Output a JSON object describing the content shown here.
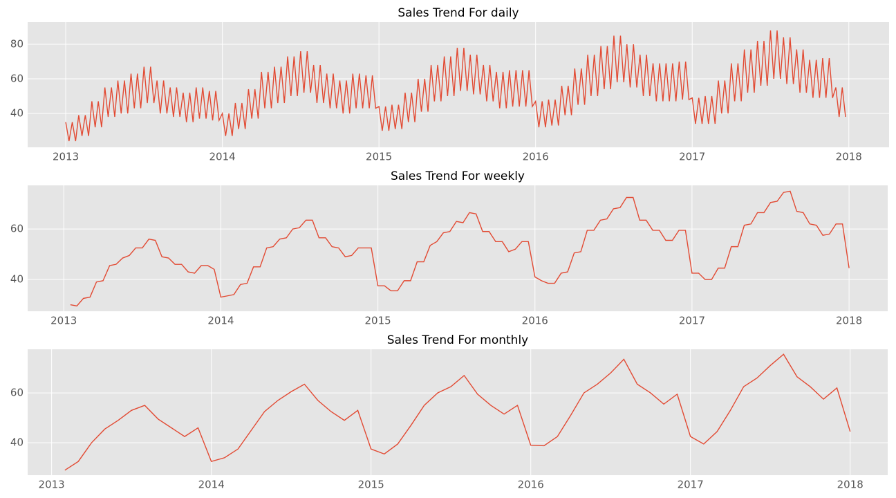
{
  "chart_data": [
    {
      "type": "line",
      "title": "Sales Trend For daily",
      "color": "#e24a33",
      "xlim": [
        2012.757,
        2018.257
      ],
      "ylim": [
        20.4,
        92.8
      ],
      "xticks": [
        2013,
        2014,
        2015,
        2016,
        2017,
        2018
      ],
      "yticks": [
        40,
        60,
        80
      ],
      "grid": true,
      "x": [
        2013,
        2013.021,
        2013.042,
        2013.063,
        2013.083,
        2013.104,
        2013.125,
        2013.146,
        2013.167,
        2013.188,
        2013.208,
        2013.229,
        2013.25,
        2013.271,
        2013.292,
        2013.313,
        2013.333,
        2013.354,
        2013.375,
        2013.396,
        2013.417,
        2013.438,
        2013.458,
        2013.479,
        2013.5,
        2013.521,
        2013.542,
        2013.563,
        2013.583,
        2013.604,
        2013.625,
        2013.646,
        2013.667,
        2013.688,
        2013.708,
        2013.729,
        2013.75,
        2013.771,
        2013.792,
        2013.813,
        2013.833,
        2013.854,
        2013.875,
        2013.896,
        2013.917,
        2013.938,
        2013.958,
        2013.979,
        2014,
        2014.021,
        2014.042,
        2014.063,
        2014.083,
        2014.104,
        2014.125,
        2014.146,
        2014.167,
        2014.188,
        2014.208,
        2014.229,
        2014.25,
        2014.271,
        2014.292,
        2014.313,
        2014.333,
        2014.354,
        2014.375,
        2014.396,
        2014.417,
        2014.438,
        2014.458,
        2014.479,
        2014.5,
        2014.521,
        2014.542,
        2014.563,
        2014.583,
        2014.604,
        2014.625,
        2014.646,
        2014.667,
        2014.688,
        2014.708,
        2014.729,
        2014.75,
        2014.771,
        2014.792,
        2014.813,
        2014.833,
        2014.854,
        2014.875,
        2014.896,
        2014.917,
        2014.938,
        2014.958,
        2014.979,
        2015,
        2015.021,
        2015.042,
        2015.063,
        2015.083,
        2015.104,
        2015.125,
        2015.146,
        2015.167,
        2015.188,
        2015.208,
        2015.229,
        2015.25,
        2015.271,
        2015.292,
        2015.313,
        2015.333,
        2015.354,
        2015.375,
        2015.396,
        2015.417,
        2015.438,
        2015.458,
        2015.479,
        2015.5,
        2015.521,
        2015.542,
        2015.563,
        2015.583,
        2015.604,
        2015.625,
        2015.646,
        2015.667,
        2015.688,
        2015.708,
        2015.729,
        2015.75,
        2015.771,
        2015.792,
        2015.813,
        2015.833,
        2015.854,
        2015.875,
        2015.896,
        2015.917,
        2015.938,
        2015.958,
        2015.979,
        2016,
        2016.021,
        2016.042,
        2016.063,
        2016.083,
        2016.104,
        2016.125,
        2016.146,
        2016.167,
        2016.188,
        2016.208,
        2016.229,
        2016.25,
        2016.271,
        2016.292,
        2016.313,
        2016.333,
        2016.354,
        2016.375,
        2016.396,
        2016.417,
        2016.438,
        2016.458,
        2016.479,
        2016.5,
        2016.521,
        2016.542,
        2016.563,
        2016.583,
        2016.604,
        2016.625,
        2016.646,
        2016.667,
        2016.688,
        2016.708,
        2016.729,
        2016.75,
        2016.771,
        2016.792,
        2016.813,
        2016.833,
        2016.854,
        2016.875,
        2016.896,
        2016.917,
        2016.938,
        2016.958,
        2016.979,
        2017,
        2017.021,
        2017.042,
        2017.063,
        2017.083,
        2017.104,
        2017.125,
        2017.146,
        2017.167,
        2017.188,
        2017.208,
        2017.229,
        2017.25,
        2017.271,
        2017.292,
        2017.313,
        2017.333,
        2017.354,
        2017.375,
        2017.396,
        2017.417,
        2017.438,
        2017.458,
        2017.479,
        2017.5,
        2017.521,
        2017.542,
        2017.563,
        2017.583,
        2017.604,
        2017.625,
        2017.646,
        2017.667,
        2017.688,
        2017.708,
        2017.729,
        2017.75,
        2017.771,
        2017.792,
        2017.813,
        2017.833,
        2017.854,
        2017.875,
        2017.896,
        2017.917,
        2017.938,
        2017.958,
        2017.979
      ],
      "values": [
        35,
        24,
        35,
        24,
        39,
        27,
        39,
        27,
        47,
        32,
        47,
        32,
        55,
        38,
        55,
        38,
        59,
        40,
        59,
        40,
        63,
        43,
        63,
        43,
        67,
        46,
        67,
        46,
        59,
        40,
        59,
        40,
        55,
        38,
        55,
        38,
        52,
        35,
        52,
        35,
        55,
        37,
        55,
        37,
        53,
        36,
        53,
        36,
        40,
        27,
        40,
        27,
        46,
        31,
        46,
        31,
        54,
        37,
        54,
        37,
        64,
        43,
        64,
        43,
        67,
        46,
        67,
        46,
        73,
        50,
        73,
        50,
        76,
        52,
        76,
        52,
        68,
        46,
        68,
        46,
        63,
        43,
        63,
        43,
        59,
        40,
        59,
        40,
        63,
        43,
        63,
        43,
        62,
        43,
        62,
        43,
        44,
        30,
        44,
        30,
        45,
        31,
        45,
        31,
        52,
        35,
        52,
        35,
        60,
        41,
        60,
        41,
        68,
        47,
        68,
        47,
        73,
        50,
        73,
        50,
        78,
        53,
        78,
        53,
        74,
        51,
        74,
        51,
        68,
        47,
        68,
        47,
        64,
        43,
        64,
        43,
        65,
        44,
        65,
        44,
        65,
        44,
        65,
        44,
        47,
        32,
        47,
        32,
        48,
        33,
        48,
        33,
        56,
        39,
        56,
        39,
        66,
        45,
        66,
        45,
        74,
        50,
        74,
        50,
        79,
        54,
        79,
        54,
        85,
        58,
        85,
        58,
        80,
        55,
        80,
        55,
        74,
        50,
        74,
        50,
        69,
        47,
        69,
        47,
        69,
        47,
        69,
        47,
        70,
        48,
        70,
        48,
        49,
        34,
        49,
        34,
        50,
        34,
        50,
        34,
        59,
        40,
        59,
        40,
        69,
        47,
        69,
        47,
        77,
        52,
        77,
        52,
        82,
        56,
        82,
        56,
        88,
        60,
        88,
        60,
        84,
        57,
        84,
        57,
        77,
        52,
        77,
        52,
        71,
        49,
        71,
        49,
        72,
        49,
        72,
        49,
        55,
        38,
        55,
        38
      ]
    },
    {
      "type": "line",
      "title": "Sales Trend For weekly",
      "color": "#e24a33",
      "xlim": [
        2012.77,
        2018.246
      ],
      "ylim": [
        27.4,
        77.3
      ],
      "xticks": [
        2013,
        2014,
        2015,
        2016,
        2017,
        2018
      ],
      "yticks": [
        40,
        60
      ],
      "grid": true,
      "x": [
        2013.042,
        2013.083,
        2013.125,
        2013.167,
        2013.208,
        2013.25,
        2013.292,
        2013.333,
        2013.375,
        2013.417,
        2013.458,
        2013.5,
        2013.542,
        2013.583,
        2013.625,
        2013.667,
        2013.708,
        2013.75,
        2013.792,
        2013.833,
        2013.875,
        2013.917,
        2013.958,
        2014,
        2014.042,
        2014.083,
        2014.125,
        2014.167,
        2014.208,
        2014.25,
        2014.292,
        2014.333,
        2014.375,
        2014.417,
        2014.458,
        2014.5,
        2014.542,
        2014.583,
        2014.625,
        2014.667,
        2014.708,
        2014.75,
        2014.792,
        2014.833,
        2014.875,
        2014.917,
        2014.958,
        2015,
        2015.042,
        2015.083,
        2015.125,
        2015.167,
        2015.208,
        2015.25,
        2015.292,
        2015.333,
        2015.375,
        2015.417,
        2015.458,
        2015.5,
        2015.542,
        2015.583,
        2015.625,
        2015.667,
        2015.708,
        2015.75,
        2015.792,
        2015.833,
        2015.875,
        2015.917,
        2015.958,
        2016,
        2016.042,
        2016.083,
        2016.125,
        2016.167,
        2016.208,
        2016.25,
        2016.292,
        2016.333,
        2016.375,
        2016.417,
        2016.458,
        2016.5,
        2016.542,
        2016.583,
        2016.625,
        2016.667,
        2016.708,
        2016.75,
        2016.792,
        2016.833,
        2016.875,
        2016.917,
        2016.958,
        2017,
        2017.042,
        2017.083,
        2017.125,
        2017.167,
        2017.208,
        2017.25,
        2017.292,
        2017.333,
        2017.375,
        2017.417,
        2017.458,
        2017.5,
        2017.542,
        2017.583,
        2017.625,
        2017.667,
        2017.708,
        2017.75,
        2017.792,
        2017.833,
        2017.875,
        2017.917,
        2017.958,
        2018
      ],
      "values": [
        30,
        29.5,
        32.5,
        33,
        39,
        39.5,
        45.5,
        46,
        48.5,
        49.5,
        52.5,
        52.5,
        56,
        55.5,
        49,
        48.5,
        46,
        46,
        43,
        42.5,
        45.5,
        45.5,
        44,
        33,
        33.5,
        34,
        38,
        38.5,
        45,
        45,
        52.5,
        53,
        56,
        56.5,
        60,
        60.5,
        63.5,
        63.5,
        56.5,
        56.5,
        53,
        52.5,
        49,
        49.5,
        52.5,
        52.5,
        52.5,
        37.5,
        37.5,
        35.5,
        35.5,
        39.5,
        39.5,
        47,
        47,
        53.5,
        55,
        58.5,
        59,
        63,
        62.5,
        66.5,
        66,
        59,
        59,
        55,
        55,
        51,
        52,
        55,
        55,
        41,
        39.5,
        38.5,
        38.5,
        42.5,
        43,
        50.5,
        51,
        59.5,
        59.5,
        63.5,
        64,
        68,
        68.5,
        72.5,
        72.5,
        63.5,
        63.5,
        59.5,
        59.5,
        55.5,
        55.5,
        59.5,
        59.5,
        42.5,
        42.5,
        40,
        40,
        44.5,
        44.5,
        53,
        53,
        61.5,
        62,
        66.5,
        66.5,
        70.5,
        71,
        74.5,
        75,
        67,
        66.5,
        62,
        61.5,
        57.5,
        58,
        62,
        62,
        44.5
      ]
    },
    {
      "type": "line",
      "title": "Sales Trend For monthly",
      "color": "#e24a33",
      "xlim": [
        2012.85,
        2018.235
      ],
      "ylim": [
        27,
        77.5
      ],
      "xticks": [
        2013,
        2014,
        2015,
        2016,
        2017,
        2018
      ],
      "yticks": [
        40,
        60
      ],
      "grid": true,
      "x": [
        2013.083,
        2013.167,
        2013.25,
        2013.333,
        2013.417,
        2013.5,
        2013.583,
        2013.667,
        2013.75,
        2013.833,
        2013.917,
        2014,
        2014.083,
        2014.167,
        2014.25,
        2014.333,
        2014.417,
        2014.5,
        2014.583,
        2014.667,
        2014.75,
        2014.833,
        2014.917,
        2015,
        2015.083,
        2015.167,
        2015.25,
        2015.333,
        2015.417,
        2015.5,
        2015.583,
        2015.667,
        2015.75,
        2015.833,
        2015.917,
        2016,
        2016.083,
        2016.167,
        2016.25,
        2016.333,
        2016.417,
        2016.5,
        2016.583,
        2016.667,
        2016.75,
        2016.833,
        2016.917,
        2017,
        2017.083,
        2017.167,
        2017.25,
        2017.333,
        2017.417,
        2017.5,
        2017.583,
        2017.667,
        2017.75,
        2017.833,
        2017.917,
        2018
      ],
      "values": [
        29,
        32.5,
        40,
        45.5,
        49,
        53,
        55,
        49.5,
        46,
        42.5,
        46,
        32.5,
        34,
        37.5,
        45,
        52.5,
        57,
        60.5,
        63.5,
        57,
        52.5,
        49,
        53,
        37.5,
        35.5,
        39.5,
        47,
        55,
        60,
        62.5,
        67,
        59.5,
        55,
        51.5,
        55,
        39,
        38.8,
        42.5,
        51,
        60,
        63.5,
        68,
        73.5,
        63.5,
        60,
        55.5,
        59.5,
        42.5,
        39.5,
        44.5,
        53,
        62.5,
        66,
        71,
        75.5,
        66.5,
        62.5,
        57.5,
        62,
        44.5
      ]
    }
  ]
}
